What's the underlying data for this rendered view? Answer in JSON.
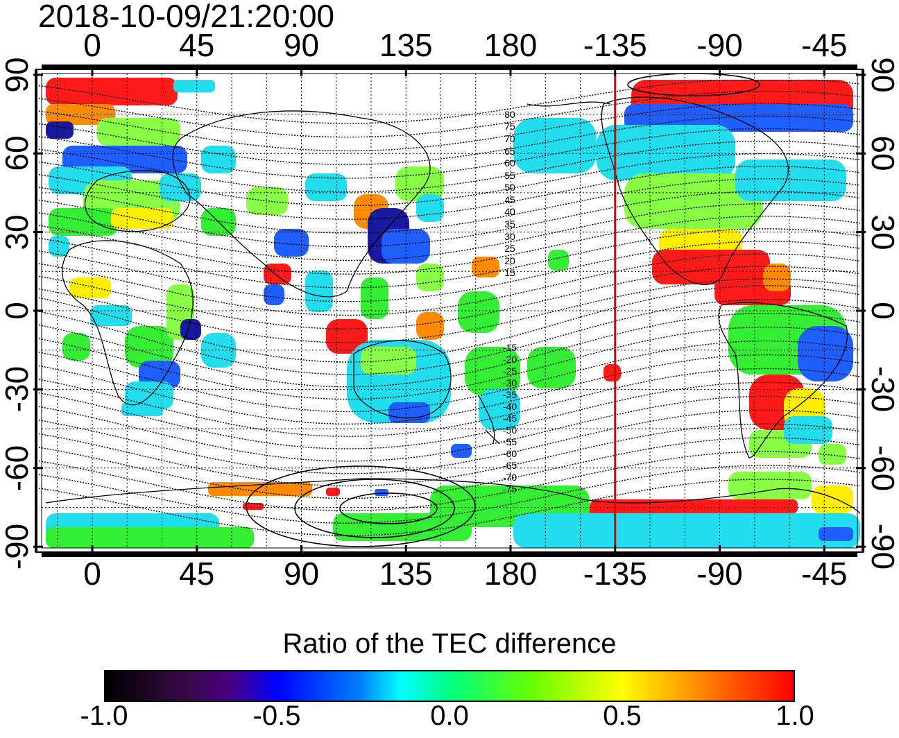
{
  "timestamp": "2018-10-09/21:20:00",
  "map": {
    "x_ticks_top": [
      "0",
      "45",
      "90",
      "135",
      "180",
      "-135",
      "-90",
      "-45"
    ],
    "x_ticks_bottom": [
      "0",
      "45",
      "90",
      "135",
      "180",
      "-135",
      "-90",
      "-45"
    ],
    "y_ticks_left": [
      "90",
      "60",
      "30",
      "0",
      "-30",
      "-60",
      "-90"
    ],
    "y_ticks_right": [
      "90",
      "60",
      "30",
      "0",
      "-30",
      "-60",
      "-90"
    ],
    "marker_meridian_longitude": -135,
    "marker_color": "#e00000",
    "contour_labels_north": [
      "80",
      "75",
      "70",
      "65",
      "60",
      "55",
      "50",
      "45",
      "40",
      "35",
      "30",
      "25",
      "20",
      "15"
    ],
    "contour_labels_south": [
      "-15",
      "-20",
      "-25",
      "-30",
      "-35",
      "-40",
      "-45",
      "-50",
      "-55",
      "-60",
      "-65",
      "-70",
      "-75"
    ]
  },
  "colorbar": {
    "title": "Ratio of the TEC difference",
    "ticks": [
      "-1.0",
      "-0.5",
      "0.0",
      "0.5",
      "1.0"
    ],
    "range": [
      -1.0,
      1.0
    ],
    "colors": [
      "#000000",
      "#4b0082",
      "#0000ff",
      "#00ffff",
      "#00ff00",
      "#ffff00",
      "#ff0000"
    ]
  }
}
